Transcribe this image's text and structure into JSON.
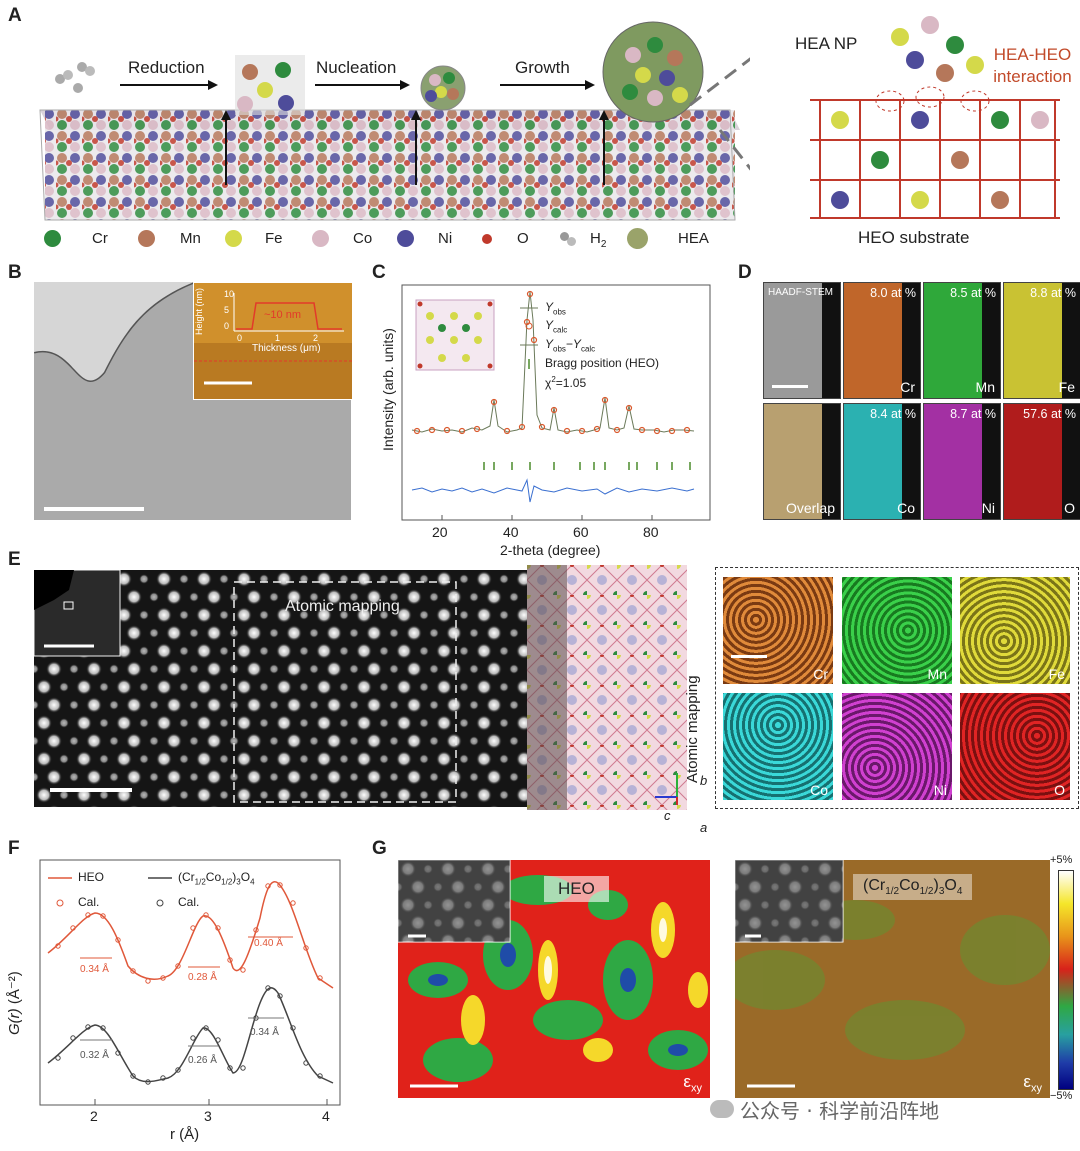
{
  "panel_labels": {
    "a": "A",
    "b": "B",
    "c": "C",
    "d": "D",
    "e": "E",
    "f": "F",
    "g": "G"
  },
  "panelA": {
    "steps": [
      "Reduction",
      "Nucleation",
      "Growth"
    ],
    "hea_np": "HEA NP",
    "interaction": "HEA-HEO interaction",
    "substrate": "HEO substrate",
    "legend": [
      {
        "label": "Cr",
        "color": "#2e8b3e"
      },
      {
        "label": "Mn",
        "color": "#b5775a"
      },
      {
        "label": "Fe",
        "color": "#d4d94a"
      },
      {
        "label": "Co",
        "color": "#d9b8c4"
      },
      {
        "label": "Ni",
        "color": "#4e4c9a"
      },
      {
        "label": "O",
        "color": "#c0392b"
      },
      {
        "label": "H",
        "sub": "2",
        "color": "#999999"
      },
      {
        "label": "HEA",
        "color": "#9aa36a"
      }
    ]
  },
  "panelB": {
    "inset": {
      "ylabel": "Height (nm)",
      "xlabel": "Thickness (μm)",
      "annotation": "~10 nm",
      "yticks": [
        "10",
        "5",
        "0"
      ],
      "xticks": [
        "0",
        "1",
        "2"
      ]
    }
  },
  "panelC": {
    "ylabel": "Intensity (arb. units)",
    "xlabel": "2-theta (degree)",
    "xticks": [
      "20",
      "40",
      "60",
      "80"
    ],
    "legend": [
      {
        "main": "Y",
        "sub": "obs"
      },
      {
        "main": "Y",
        "sub": "calc"
      },
      {
        "main": "Y",
        "sub": "obs",
        "main2": "−Y",
        "sub2": "calc"
      },
      {
        "main": "Bragg position (HEO)"
      }
    ],
    "chi_label": "χ",
    "chi_sup": "2",
    "chi_value": "=1.05"
  },
  "panelD": {
    "tiles": [
      {
        "top": "HAADF-STEM",
        "element": "",
        "color": "#9a9a9a"
      },
      {
        "top": "8.0 at %",
        "element": "Cr",
        "color": "#c0662a"
      },
      {
        "top": "8.5 at %",
        "element": "Mn",
        "color": "#2fa83a"
      },
      {
        "top": "8.8 at %",
        "element": "Fe",
        "color": "#c9c233"
      },
      {
        "top": "",
        "element": "Overlap",
        "color": "#b8a070"
      },
      {
        "top": "8.4 at %",
        "element": "Co",
        "color": "#2bb1b1"
      },
      {
        "top": "8.7 at %",
        "element": "Ni",
        "color": "#a330a3"
      },
      {
        "top": "57.6 at %",
        "element": "O",
        "color": "#b01c1c"
      }
    ]
  },
  "panelE": {
    "mapping_label": "Atomic mapping",
    "side_label": "Atomic mapping",
    "axes": {
      "b": "b",
      "c": "c",
      "a": "a"
    },
    "maps": [
      {
        "element": "Cr",
        "color": "#d07a2a"
      },
      {
        "element": "Mn",
        "color": "#2bbb3a"
      },
      {
        "element": "Fe",
        "color": "#c8c22a"
      },
      {
        "element": "Co",
        "color": "#27c0c0"
      },
      {
        "element": "Ni",
        "color": "#b030b0"
      },
      {
        "element": "O",
        "color": "#c01818"
      }
    ]
  },
  "panelF": {
    "legend": {
      "heo": "HEO",
      "cal": "Cal.",
      "ref_pre": "(Cr",
      "ref_sub1": "1/2",
      "ref_mid": "Co",
      "ref_sub2": "1/2",
      "ref_post": ")",
      "ref_sub3": "3",
      "ref_end": "O",
      "ref_sub4": "4"
    },
    "ylabel_main": "G(r)",
    "ylabel_unit": "(Å⁻²)",
    "xlabel": "r (Å)",
    "xticks": [
      "2",
      "3",
      "4"
    ],
    "annotations_top": [
      "0.34 Å",
      "0.28 Å",
      "0.40 Å"
    ],
    "annotations_bottom": [
      "0.32 Å",
      "0.26 Å",
      "0.34 Å"
    ]
  },
  "panelG": {
    "label_left": "HEO",
    "label_right_pre": "(Cr",
    "label_right_sub1": "1/2",
    "label_right_mid": "Co",
    "label_right_sub2": "1/2",
    "label_right_post": ")",
    "label_right_sub3": "3",
    "label_right_end": "O",
    "label_right_sub4": "4",
    "strain": "ε",
    "strain_sub": "xy",
    "scale_top": "+5%",
    "scale_bottom": "−5%"
  },
  "watermark": "公众号 · 科学前沿阵地"
}
